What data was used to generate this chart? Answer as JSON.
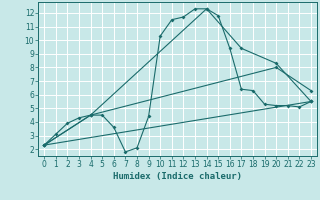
{
  "bg_color": "#c8e8e8",
  "grid_color": "#ffffff",
  "line_color": "#1a6b6b",
  "marker": "D",
  "markersize": 2.0,
  "xlabel": "Humidex (Indice chaleur)",
  "xlim": [
    -0.5,
    23.5
  ],
  "ylim": [
    1.5,
    12.8
  ],
  "xticks": [
    0,
    1,
    2,
    3,
    4,
    5,
    6,
    7,
    8,
    9,
    10,
    11,
    12,
    13,
    14,
    15,
    16,
    17,
    18,
    19,
    20,
    21,
    22,
    23
  ],
  "yticks": [
    2,
    3,
    4,
    5,
    6,
    7,
    8,
    9,
    10,
    11,
    12
  ],
  "line1_x": [
    0,
    1,
    2,
    3,
    4,
    5,
    6,
    7,
    8,
    9,
    10,
    11,
    12,
    13,
    14,
    15,
    16,
    17,
    18,
    19,
    20,
    21,
    22,
    23
  ],
  "line1_y": [
    2.3,
    3.1,
    3.9,
    4.3,
    4.5,
    4.5,
    3.6,
    1.8,
    2.1,
    4.4,
    10.3,
    11.5,
    11.7,
    12.3,
    12.3,
    11.8,
    9.4,
    6.4,
    6.3,
    5.3,
    5.2,
    5.2,
    5.1,
    5.5
  ],
  "line2_x": [
    0,
    4,
    14,
    17,
    20,
    23
  ],
  "line2_y": [
    2.3,
    4.5,
    12.3,
    9.4,
    8.3,
    5.5
  ],
  "line3_x": [
    0,
    4,
    20,
    23
  ],
  "line3_y": [
    2.3,
    4.5,
    8.0,
    6.3
  ],
  "line4_x": [
    0,
    23
  ],
  "line4_y": [
    2.3,
    5.5
  ]
}
